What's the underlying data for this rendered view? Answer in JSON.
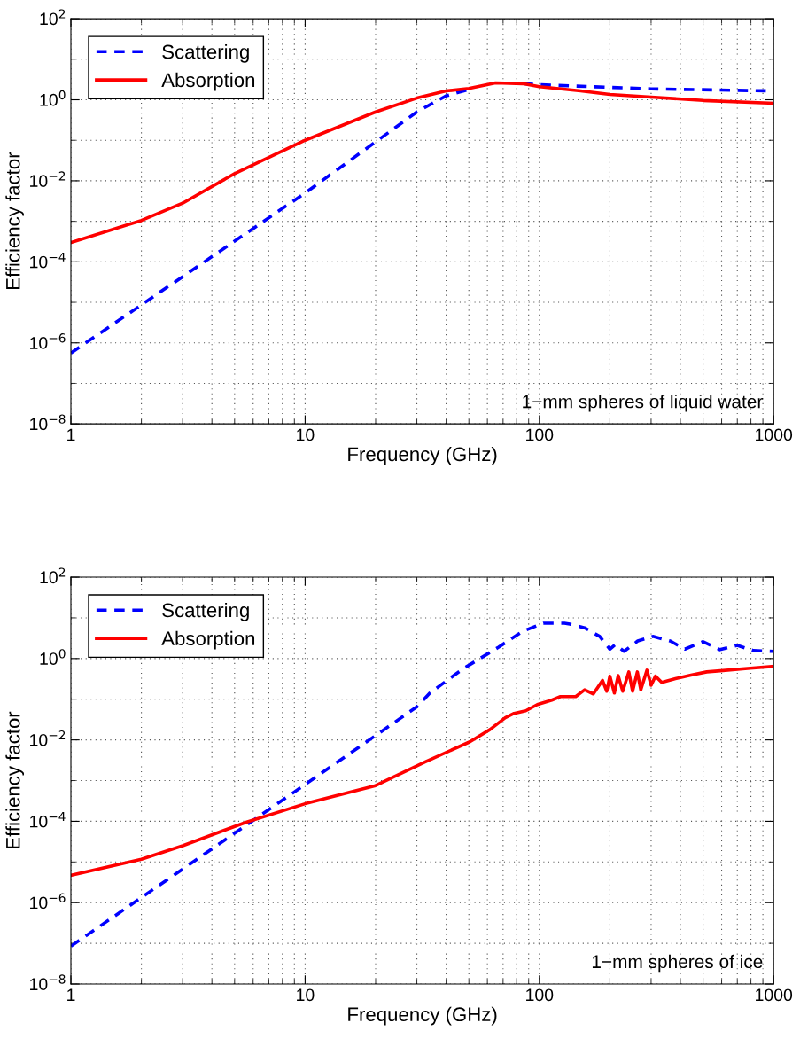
{
  "chart_data": [
    {
      "type": "line",
      "xlabel": "Frequency (GHz)",
      "ylabel": "Efficiency factor",
      "log": "xy",
      "grid": true,
      "legend": "top left",
      "xlim": [
        1,
        1000
      ],
      "xticks": [
        1,
        10,
        100,
        1000
      ],
      "ylim": [
        1e-08,
        100
      ],
      "yticks": [
        {
          "value": 1e-08,
          "label": "10$^{−8}$"
        },
        {
          "value": 1e-06,
          "label": "10$^{−6}$"
        },
        {
          "value": 0.0001,
          "label": "10$^{−4}$"
        },
        {
          "value": 0.01,
          "label": "10$^{−2}$"
        },
        {
          "value": 1,
          "label": "10$^{0}$"
        },
        {
          "value": 100,
          "label": "10$^{2}$"
        }
      ],
      "annotations": [
        "1−mm spheres of liquid water"
      ],
      "series": [
        {
          "name": "Scattering",
          "color": "#0000ff",
          "line_style": "dashed",
          "x": [
            1,
            10,
            30,
            40,
            50,
            65,
            85,
            100,
            300,
            1000
          ],
          "values": [
            5.6e-07,
            0.005,
            0.5,
            1.25,
            1.8,
            null,
            2.5,
            2.35,
            1.86,
            1.65
          ]
        },
        {
          "name": "Absorption",
          "color": "#ff0000",
          "line_style": "solid",
          "x": [
            1,
            2,
            3,
            5,
            10,
            20,
            30,
            40,
            50,
            65,
            85,
            100,
            150,
            200,
            300,
            500,
            1000
          ],
          "values": [
            0.0003,
            0.00105,
            0.0028,
            0.015,
            0.1,
            0.5,
            1.1,
            1.65,
            1.9,
            2.6,
            2.5,
            2.1,
            1.65,
            1.35,
            1.16,
            0.96,
            0.82
          ]
        }
      ]
    },
    {
      "type": "line",
      "xlabel": "Frequency (GHz)",
      "ylabel": "Efficiency factor",
      "log": "xy",
      "grid": true,
      "legend": "top left",
      "xlim": [
        1,
        1000
      ],
      "xticks": [
        1,
        10,
        100,
        1000
      ],
      "ylim": [
        1e-08,
        100
      ],
      "yticks": [
        {
          "value": 1e-08,
          "label": "10$^{−8}$"
        },
        {
          "value": 1e-06,
          "label": "10$^{−6}$"
        },
        {
          "value": 0.0001,
          "label": "10$^{−4}$"
        },
        {
          "value": 0.01,
          "label": "10$^{−2}$"
        },
        {
          "value": 1,
          "label": "10$^{0}$"
        },
        {
          "value": 100,
          "label": "10$^{2}$"
        }
      ],
      "annotations": [
        "1−mm spheres of ice"
      ],
      "series": [
        {
          "name": "Scattering",
          "color": "#0000ff",
          "line_style": "dashed",
          "x": [
            1,
            10,
            30,
            34,
            47,
            67,
            85,
            104,
            128,
            135,
            156,
            181,
            200,
            211,
            230,
            263,
            305,
            362,
            418,
            500,
            590,
            700,
            820,
            1000
          ],
          "values": [
            8.5e-08,
            0.0008,
            0.065,
            0.14,
            0.55,
            1.9,
            4.7,
            7.4,
            7.4,
            7,
            5.7,
            3.5,
            1.7,
            2.2,
            1.5,
            2.7,
            3.5,
            2.7,
            1.7,
            2.6,
            1.65,
            2.1,
            1.57,
            1.5
          ]
        },
        {
          "name": "Absorption",
          "color": "#ff0000",
          "line_style": "solid",
          "x": [
            1,
            2,
            3,
            5.6,
            10,
            19.8,
            32.6,
            50.5,
            61.6,
            71.5,
            78,
            87.5,
            98,
            113,
            123,
            143,
            156,
            170,
            186,
            194,
            200,
            209,
            217,
            227,
            241,
            250,
            262,
            271,
            288,
            300,
            313,
            333,
            381,
            444,
            518,
            593,
            794,
            1000
          ],
          "values": [
            4.7e-06,
            1.17e-05,
            2.5e-05,
            9.5e-05,
            0.00027,
            0.00074,
            0.0029,
            0.009,
            0.018,
            0.035,
            0.045,
            0.052,
            0.074,
            0.095,
            0.116,
            0.116,
            0.17,
            0.135,
            0.29,
            0.157,
            0.37,
            0.142,
            0.38,
            0.157,
            0.47,
            0.157,
            0.47,
            0.17,
            0.52,
            0.22,
            0.37,
            0.26,
            0.32,
            0.39,
            0.47,
            0.5,
            0.58,
            0.64
          ]
        }
      ]
    }
  ]
}
